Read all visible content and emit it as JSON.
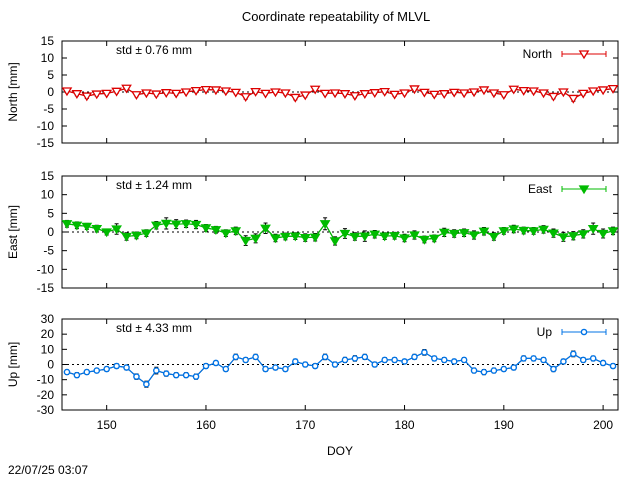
{
  "title": "Coordinate repeatability of MLVL",
  "timestamp": "22/07/25 03:07",
  "chart_data": [
    {
      "type": "line",
      "ylabel": "North [mm]",
      "legend": "North",
      "stats": "std ± 0.76 mm",
      "color": "#dd0000",
      "marker": "triangle-down-open",
      "legend_position": "top-right",
      "ylim": [
        -15,
        15
      ],
      "yticks": [
        -15,
        -10,
        -5,
        0,
        5,
        10,
        15
      ],
      "xlim": [
        145.5,
        201.5
      ],
      "xticks": [],
      "grid": false,
      "series": [
        {
          "x": [
            146,
            147,
            148,
            149,
            150,
            151,
            152,
            153,
            154,
            155,
            156,
            157,
            158,
            159,
            160,
            161,
            162,
            163,
            164,
            165,
            166,
            167,
            168,
            169,
            170,
            171,
            172,
            173,
            174,
            175,
            176,
            177,
            178,
            179,
            180,
            181,
            182,
            183,
            184,
            185,
            186,
            187,
            188,
            189,
            190,
            191,
            192,
            193,
            194,
            195,
            196,
            197,
            198,
            199,
            200,
            201
          ],
          "values": [
            0.3,
            -0.5,
            -1.2,
            -0.6,
            -0.4,
            0.2,
            1.1,
            -0.8,
            -0.3,
            -0.6,
            -0.2,
            -0.4,
            0.0,
            0.4,
            0.7,
            0.6,
            0.3,
            -0.1,
            -1.4,
            0.1,
            -0.4,
            0.0,
            -0.3,
            -1.6,
            -0.9,
            0.8,
            -0.4,
            -0.3,
            -0.5,
            -1.1,
            -0.5,
            -0.2,
            0.1,
            -0.7,
            -0.3,
            0.9,
            -0.1,
            -0.7,
            -0.5,
            -0.1,
            -0.3,
            0.0,
            0.6,
            -0.3,
            -0.8,
            0.8,
            0.4,
            0.3,
            -0.3,
            -1.3,
            0.0,
            -1.9,
            -0.4,
            0.3,
            0.6,
            1.0
          ],
          "errors": [
            0.5,
            0.6,
            0.7,
            0.6,
            0.5,
            0.6,
            0.7,
            0.6,
            0.5,
            0.6,
            0.5,
            0.6,
            0.5,
            0.5,
            0.6,
            0.5,
            0.6,
            0.5,
            0.7,
            0.6,
            0.5,
            0.5,
            0.6,
            0.7,
            0.6,
            0.6,
            0.5,
            0.5,
            0.6,
            0.6,
            0.5,
            0.5,
            0.6,
            0.6,
            0.5,
            0.6,
            0.5,
            0.6,
            0.5,
            0.6,
            0.5,
            0.6,
            0.5,
            0.6,
            0.6,
            0.6,
            0.5,
            0.6,
            0.5,
            0.7,
            0.6,
            0.8,
            0.6,
            0.5,
            0.5,
            0.6
          ]
        }
      ]
    },
    {
      "type": "line",
      "ylabel": "East [mm]",
      "legend": "East",
      "stats": "std ± 1.24 mm",
      "color": "#00bb00",
      "marker": "triangle-down-filled",
      "legend_position": "top-right",
      "ylim": [
        -15,
        15
      ],
      "yticks": [
        -15,
        -10,
        -5,
        0,
        5,
        10,
        15
      ],
      "xlim": [
        145.5,
        201.5
      ],
      "xticks": [],
      "grid": false,
      "series": [
        {
          "x": [
            146,
            147,
            148,
            149,
            150,
            151,
            152,
            153,
            154,
            155,
            156,
            157,
            158,
            159,
            160,
            161,
            162,
            163,
            164,
            165,
            166,
            167,
            168,
            169,
            170,
            171,
            172,
            173,
            174,
            175,
            176,
            177,
            178,
            179,
            180,
            181,
            182,
            183,
            184,
            185,
            186,
            187,
            188,
            189,
            190,
            191,
            192,
            193,
            194,
            195,
            196,
            197,
            198,
            199,
            200,
            201
          ],
          "values": [
            2.2,
            1.8,
            1.5,
            0.9,
            0.0,
            0.8,
            -1.2,
            -0.9,
            -0.3,
            1.8,
            2.3,
            2.1,
            2.2,
            2.0,
            1.1,
            0.6,
            -0.3,
            0.3,
            -2.3,
            -1.7,
            1.0,
            -1.6,
            -1.2,
            -1.1,
            -1.5,
            -1.4,
            2.2,
            -2.4,
            -0.4,
            -1.2,
            -1.1,
            -0.6,
            -1.1,
            -1.0,
            -1.6,
            -0.8,
            -2.0,
            -1.7,
            -0.1,
            -0.4,
            -0.2,
            -0.8,
            0.2,
            -1.2,
            0.3,
            0.8,
            0.4,
            0.3,
            0.7,
            -0.3,
            -1.3,
            -1.0,
            -0.5,
            0.9,
            -0.4,
            0.3
          ],
          "errors": [
            0.9,
            0.9,
            0.8,
            0.9,
            0.8,
            1.4,
            1.0,
            0.9,
            0.9,
            1.0,
            1.5,
            1.2,
            1.0,
            1.1,
            0.9,
            0.9,
            0.9,
            1.0,
            1.3,
            1.2,
            1.4,
            1.0,
            0.9,
            0.9,
            1.0,
            1.0,
            1.6,
            1.1,
            1.3,
            1.0,
            1.4,
            1.0,
            0.9,
            0.9,
            1.0,
            1.1,
            0.9,
            0.9,
            1.1,
            1.0,
            1.0,
            1.1,
            1.0,
            1.0,
            0.9,
            1.0,
            0.9,
            0.9,
            1.0,
            1.1,
            1.2,
            1.1,
            1.1,
            1.5,
            1.2,
            1.0
          ]
        }
      ]
    },
    {
      "type": "line",
      "ylabel": "Up [mm]",
      "legend": "Up",
      "stats": "std ± 4.33 mm",
      "color": "#0073e6",
      "marker": "circle-open",
      "legend_position": "top-right",
      "ylim": [
        -30,
        30
      ],
      "yticks": [
        -30,
        -20,
        -10,
        0,
        10,
        20,
        30
      ],
      "xlim": [
        145.5,
        201.5
      ],
      "xticks": [
        150,
        160,
        170,
        180,
        190,
        200
      ],
      "xlabel": "DOY",
      "grid": false,
      "series": [
        {
          "x": [
            146,
            147,
            148,
            149,
            150,
            151,
            152,
            153,
            154,
            155,
            156,
            157,
            158,
            159,
            160,
            161,
            162,
            163,
            164,
            165,
            166,
            167,
            168,
            169,
            170,
            171,
            172,
            173,
            174,
            175,
            176,
            177,
            178,
            179,
            180,
            181,
            182,
            183,
            184,
            185,
            186,
            187,
            188,
            189,
            190,
            191,
            192,
            193,
            194,
            195,
            196,
            197,
            198,
            199,
            200,
            201
          ],
          "values": [
            -5,
            -7,
            -5,
            -4,
            -3,
            -1,
            -2,
            -8,
            -13,
            -4,
            -6,
            -7,
            -7,
            -8,
            -1,
            1,
            -3,
            5,
            3,
            5,
            -3,
            -2,
            -3,
            2,
            0,
            -1,
            5,
            0,
            3,
            4,
            5,
            0,
            3,
            3,
            2,
            5,
            8,
            4,
            3,
            2,
            3,
            -4,
            -5,
            -4,
            -3,
            -2,
            4,
            4,
            3,
            -3,
            2,
            7,
            3,
            4,
            1,
            -1
          ],
          "errors": [
            1.5,
            1.6,
            1.5,
            1.4,
            1.5,
            1.5,
            1.6,
            1.8,
            2.0,
            2.2,
            1.7,
            1.6,
            1.6,
            1.7,
            1.5,
            1.4,
            1.5,
            1.8,
            1.6,
            1.7,
            1.6,
            1.5,
            1.5,
            1.6,
            1.5,
            1.5,
            1.8,
            1.6,
            1.7,
            1.8,
            1.7,
            1.5,
            1.6,
            1.6,
            1.5,
            1.7,
            1.9,
            1.6,
            1.6,
            1.5,
            1.5,
            1.6,
            1.7,
            1.6,
            1.5,
            1.6,
            1.7,
            1.6,
            1.6,
            1.7,
            1.6,
            1.9,
            1.6,
            1.6,
            1.5,
            1.5
          ]
        }
      ]
    }
  ]
}
